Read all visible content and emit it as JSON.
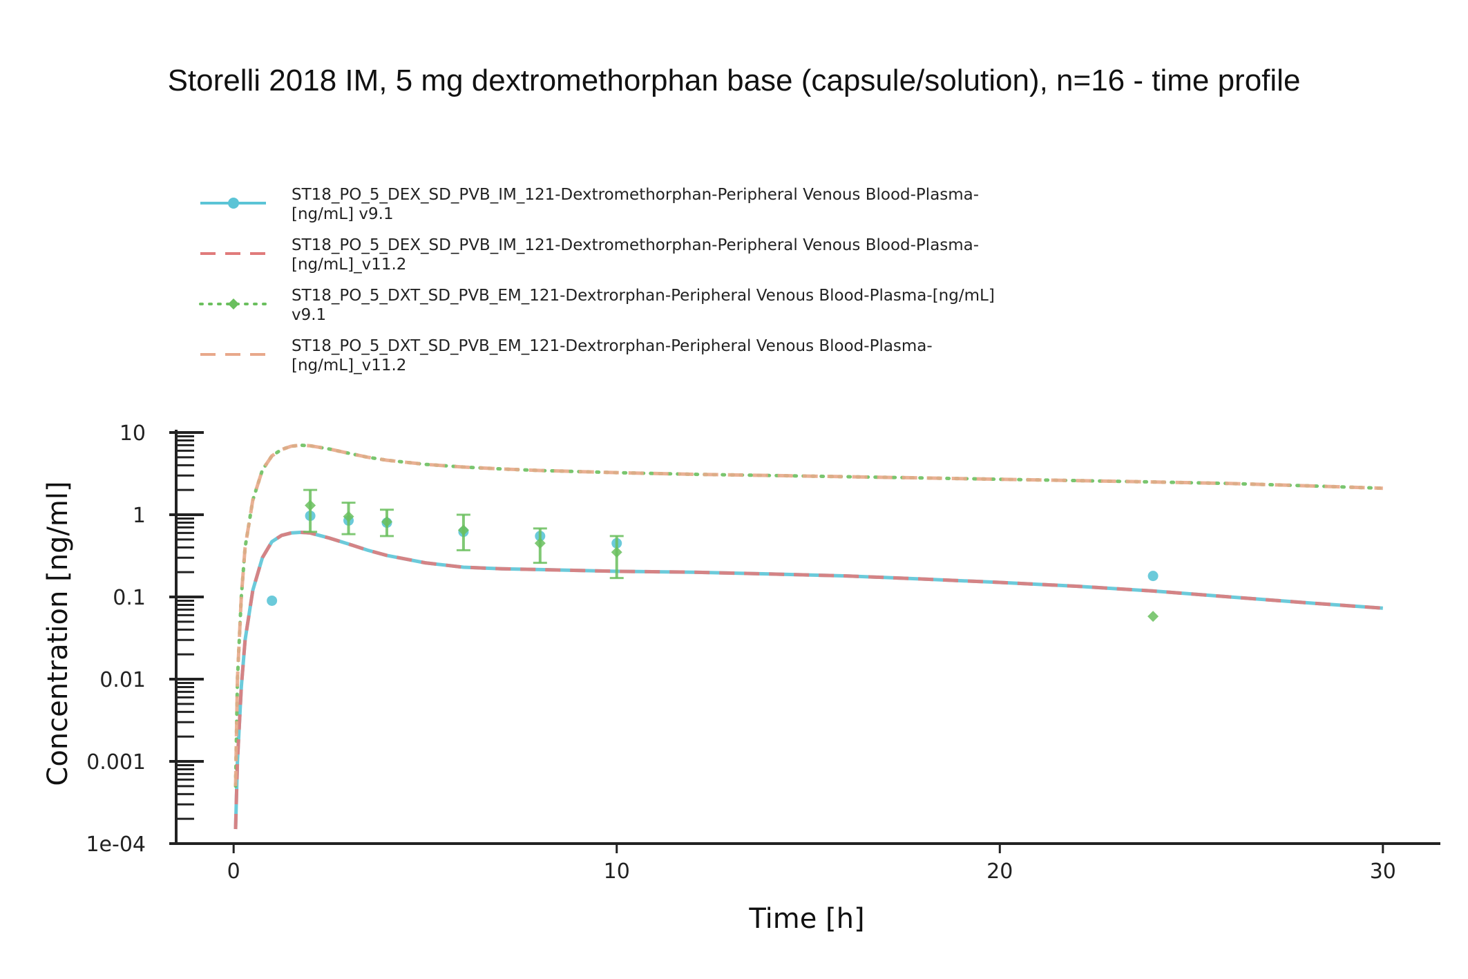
{
  "chart_data": {
    "type": "line",
    "title": "Storelli 2018 IM, 5 mg dextromethorphan base (capsule/solution), n=16 - time profile",
    "xlabel": "Time [h]",
    "ylabel": "Concentration [ng/ml]",
    "xlim": [
      -1.5,
      31.5
    ],
    "ylim": [
      0.0001,
      10
    ],
    "yscale": "log",
    "xticks": [
      0,
      10,
      20,
      30
    ],
    "xtick_labels": [
      "0",
      "10",
      "20",
      "30"
    ],
    "yticks": [
      0.0001,
      0.001,
      0.01,
      0.1,
      1,
      10
    ],
    "ytick_labels": [
      "1e-04",
      "0.001",
      "0.01",
      "0.1",
      "1",
      "10"
    ],
    "grid": false,
    "legend_position": "top-left",
    "series": [
      {
        "name": "ST18_PO_5_DEX_SD_PVB_IM_121-Dextromethorphan-Peripheral Venous Blood-Plasma-[ng/mL] v9.1",
        "color": "#5bc4d6",
        "style": "solid",
        "marker": "circle",
        "x": [
          0.05,
          0.1,
          0.2,
          0.3,
          0.5,
          0.75,
          1,
          1.25,
          1.5,
          1.75,
          2,
          2.5,
          3,
          3.5,
          4,
          5,
          6,
          7,
          8,
          10,
          12,
          14,
          16,
          18,
          20,
          22,
          24,
          26,
          28,
          30
        ],
        "y": [
          0.00015,
          0.001,
          0.008,
          0.03,
          0.12,
          0.3,
          0.47,
          0.56,
          0.6,
          0.61,
          0.6,
          0.52,
          0.44,
          0.37,
          0.32,
          0.26,
          0.23,
          0.22,
          0.215,
          0.205,
          0.2,
          0.19,
          0.18,
          0.165,
          0.15,
          0.135,
          0.118,
          0.1,
          0.085,
          0.073
        ],
        "observed": {
          "x": [
            1,
            2,
            3,
            4,
            6,
            8,
            10,
            24
          ],
          "y": [
            0.09,
            0.97,
            0.85,
            0.8,
            0.62,
            0.55,
            0.45,
            0.18
          ]
        }
      },
      {
        "name": "ST18_PO_5_DEX_SD_PVB_IM_121-Dextromethorphan-Peripheral Venous Blood-Plasma-[ng/mL]_v11.2",
        "color": "#e07b7b",
        "style": "dashed",
        "x": [
          0.05,
          0.1,
          0.2,
          0.3,
          0.5,
          0.75,
          1,
          1.25,
          1.5,
          1.75,
          2,
          2.5,
          3,
          3.5,
          4,
          5,
          6,
          7,
          8,
          10,
          12,
          14,
          16,
          18,
          20,
          22,
          24,
          26,
          28,
          30
        ],
        "y": [
          0.00015,
          0.001,
          0.008,
          0.03,
          0.12,
          0.3,
          0.47,
          0.56,
          0.6,
          0.61,
          0.6,
          0.52,
          0.44,
          0.37,
          0.32,
          0.26,
          0.23,
          0.22,
          0.215,
          0.205,
          0.2,
          0.19,
          0.18,
          0.165,
          0.15,
          0.135,
          0.118,
          0.1,
          0.085,
          0.073
        ]
      },
      {
        "name": "ST18_PO_5_DXT_SD_PVB_EM_121-Dextrorphan-Peripheral Venous Blood-Plasma-[ng/mL] v9.1",
        "color": "#6abf5e",
        "style": "dotted",
        "marker": "diamond",
        "x": [
          0.05,
          0.1,
          0.2,
          0.3,
          0.5,
          0.75,
          1,
          1.25,
          1.5,
          1.75,
          2,
          2.5,
          3,
          3.5,
          4,
          5,
          6,
          7,
          8,
          10,
          12,
          14,
          16,
          18,
          20,
          22,
          24,
          26,
          28,
          30
        ],
        "y": [
          0.0005,
          0.01,
          0.1,
          0.4,
          1.5,
          3.5,
          5.2,
          6.2,
          6.8,
          7.0,
          6.9,
          6.3,
          5.6,
          5.0,
          4.6,
          4.1,
          3.8,
          3.6,
          3.45,
          3.25,
          3.1,
          3.0,
          2.9,
          2.8,
          2.7,
          2.6,
          2.5,
          2.4,
          2.25,
          2.1
        ],
        "observed": {
          "x": [
            2,
            3,
            4,
            6,
            8,
            10,
            24
          ],
          "y": [
            1.3,
            0.95,
            0.82,
            0.65,
            0.45,
            0.35,
            0.058
          ],
          "err_low": [
            0.62,
            0.58,
            0.55,
            0.37,
            0.26,
            0.17,
            null
          ],
          "err_high": [
            2.0,
            1.4,
            1.15,
            1.0,
            0.68,
            0.55,
            null
          ]
        }
      },
      {
        "name": "ST18_PO_5_DXT_SD_PVB_EM_121-Dextrorphan-Peripheral Venous Blood-Plasma-[ng/mL]_v11.2",
        "color": "#e8a88a",
        "style": "dashed",
        "x": [
          0.05,
          0.1,
          0.2,
          0.3,
          0.5,
          0.75,
          1,
          1.25,
          1.5,
          1.75,
          2,
          2.5,
          3,
          3.5,
          4,
          5,
          6,
          7,
          8,
          10,
          12,
          14,
          16,
          18,
          20,
          22,
          24,
          26,
          28,
          30
        ],
        "y": [
          0.0005,
          0.01,
          0.1,
          0.4,
          1.5,
          3.5,
          5.2,
          6.2,
          6.8,
          7.0,
          6.9,
          6.3,
          5.6,
          5.0,
          4.6,
          4.1,
          3.8,
          3.6,
          3.45,
          3.25,
          3.1,
          3.0,
          2.9,
          2.8,
          2.7,
          2.6,
          2.5,
          2.4,
          2.25,
          2.1
        ]
      }
    ]
  }
}
